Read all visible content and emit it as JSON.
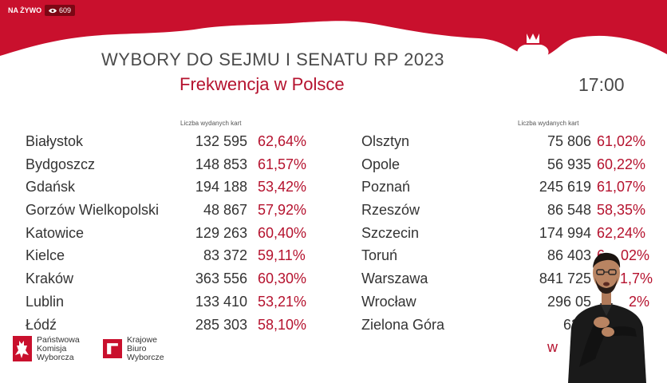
{
  "overlay": {
    "live_label": "NA ŻYWO",
    "viewer_count": "609",
    "eye_icon": "eye-icon"
  },
  "header": {
    "title": "WYBORY DO SEJMU I SENATU RP 2023",
    "subtitle": "Frekwencja w Polsce",
    "time": "17:00"
  },
  "table_left": {
    "column_header": "Liczba wydanych kart",
    "rows": [
      {
        "city": "Białystok",
        "cards": "132 595",
        "pct": "62,64%"
      },
      {
        "city": "Bydgoszcz",
        "cards": "148 853",
        "pct": "61,57%"
      },
      {
        "city": "Gdańsk",
        "cards": "194 188",
        "pct": "53,42%"
      },
      {
        "city": "Gorzów Wielkopolski",
        "cards": "48 867",
        "pct": "57,92%"
      },
      {
        "city": "Katowice",
        "cards": "129 263",
        "pct": "60,40%"
      },
      {
        "city": "Kielce",
        "cards": "83 372",
        "pct": "59,11%"
      },
      {
        "city": "Kraków",
        "cards": "363 556",
        "pct": "60,30%"
      },
      {
        "city": "Lublin",
        "cards": "133 410",
        "pct": "53,21%"
      },
      {
        "city": "Łódź",
        "cards": "285 303",
        "pct": "58,10%"
      }
    ]
  },
  "table_right": {
    "column_header": "Liczba wydanych kart",
    "rows": [
      {
        "city": "Olsztyn",
        "cards": "75 806",
        "pct": "61,02%"
      },
      {
        "city": "Opole",
        "cards": "56 935",
        "pct": "60,22%"
      },
      {
        "city": "Poznań",
        "cards": "245 619",
        "pct": "61,07%"
      },
      {
        "city": "Rzeszów",
        "cards": "86 548",
        "pct": "58,35%"
      },
      {
        "city": "Szczecin",
        "cards": "174 994",
        "pct": "62,24%"
      },
      {
        "city": "Toruń",
        "cards": "86 403",
        "pct": "6",
        "pct_tail": "02%"
      },
      {
        "city": "Warszawa",
        "cards": "841 725",
        "pct": "",
        "pct_tail": "1,7%"
      },
      {
        "city": "Wrocław",
        "cards": "296 05",
        "pct": "",
        "pct_tail": "2%"
      },
      {
        "city": "Zielona Góra",
        "cards": "63 5",
        "pct": ""
      }
    ]
  },
  "footer": {
    "logo_pkw": [
      "Państwowa",
      "Komisja",
      "Wyborcza"
    ],
    "logo_kbw": [
      "Krajowe",
      "Biuro",
      "Wyborcze"
    ],
    "partial_text": "w"
  },
  "colors": {
    "brand_red": "#c9102d",
    "text_red": "#b5122e",
    "text_gray": "#4a4a4a"
  }
}
